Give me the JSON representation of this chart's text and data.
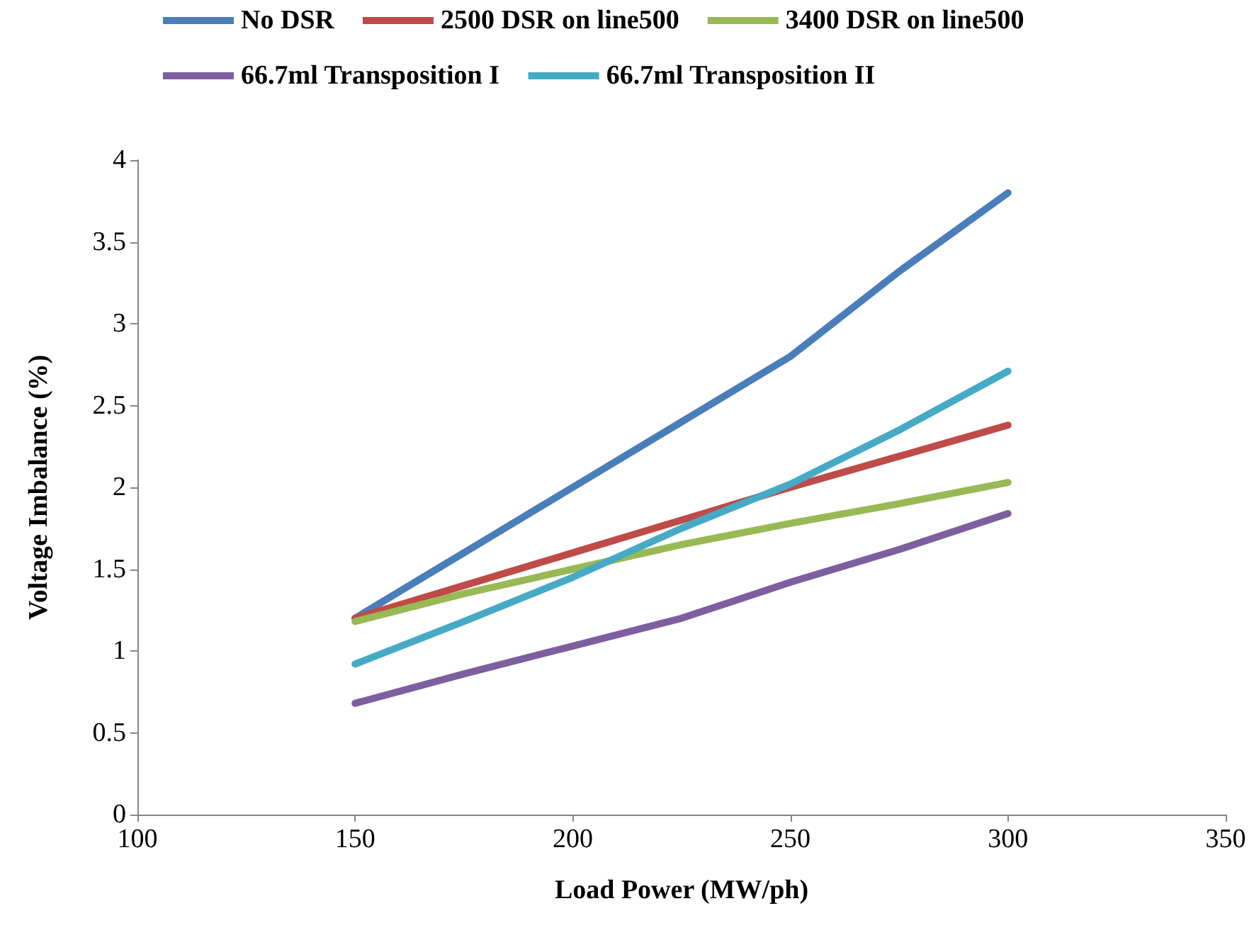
{
  "chart_data": {
    "type": "line",
    "xlabel": "Load Power (MW/ph)",
    "ylabel": "Voltage Imbalance (%)",
    "x": [
      150,
      175,
      200,
      225,
      250,
      275,
      300
    ],
    "series": [
      {
        "name": "No DSR",
        "color": "#4a7ebb",
        "values": [
          1.2,
          1.6,
          2.0,
          2.4,
          2.8,
          3.32,
          3.8
        ]
      },
      {
        "name": "2500 DSR on line500",
        "color": "#be4b48",
        "values": [
          1.2,
          1.4,
          1.6,
          1.8,
          2.0,
          2.19,
          2.38
        ]
      },
      {
        "name": "3400 DSR on line500",
        "color": "#98b954",
        "values": [
          1.18,
          1.35,
          1.5,
          1.65,
          1.78,
          1.9,
          2.03
        ]
      },
      {
        "name": "66.7ml Transposition I",
        "color": "#7d5fa0",
        "values": [
          0.68,
          0.86,
          1.03,
          1.2,
          1.42,
          1.62,
          1.84
        ]
      },
      {
        "name": "66.7ml Transposition II",
        "color": "#46aac5",
        "values": [
          0.92,
          1.18,
          1.45,
          1.75,
          2.02,
          2.35,
          2.71
        ]
      }
    ],
    "xlim": [
      100,
      350
    ],
    "xticks": [
      100,
      150,
      200,
      250,
      300,
      350
    ],
    "ylim": [
      0,
      4
    ],
    "yticks": [
      0,
      0.5,
      1,
      1.5,
      2,
      2.5,
      3,
      3.5,
      4
    ],
    "grid": false,
    "legend": "top",
    "marker": "none",
    "line_style": "solid"
  }
}
